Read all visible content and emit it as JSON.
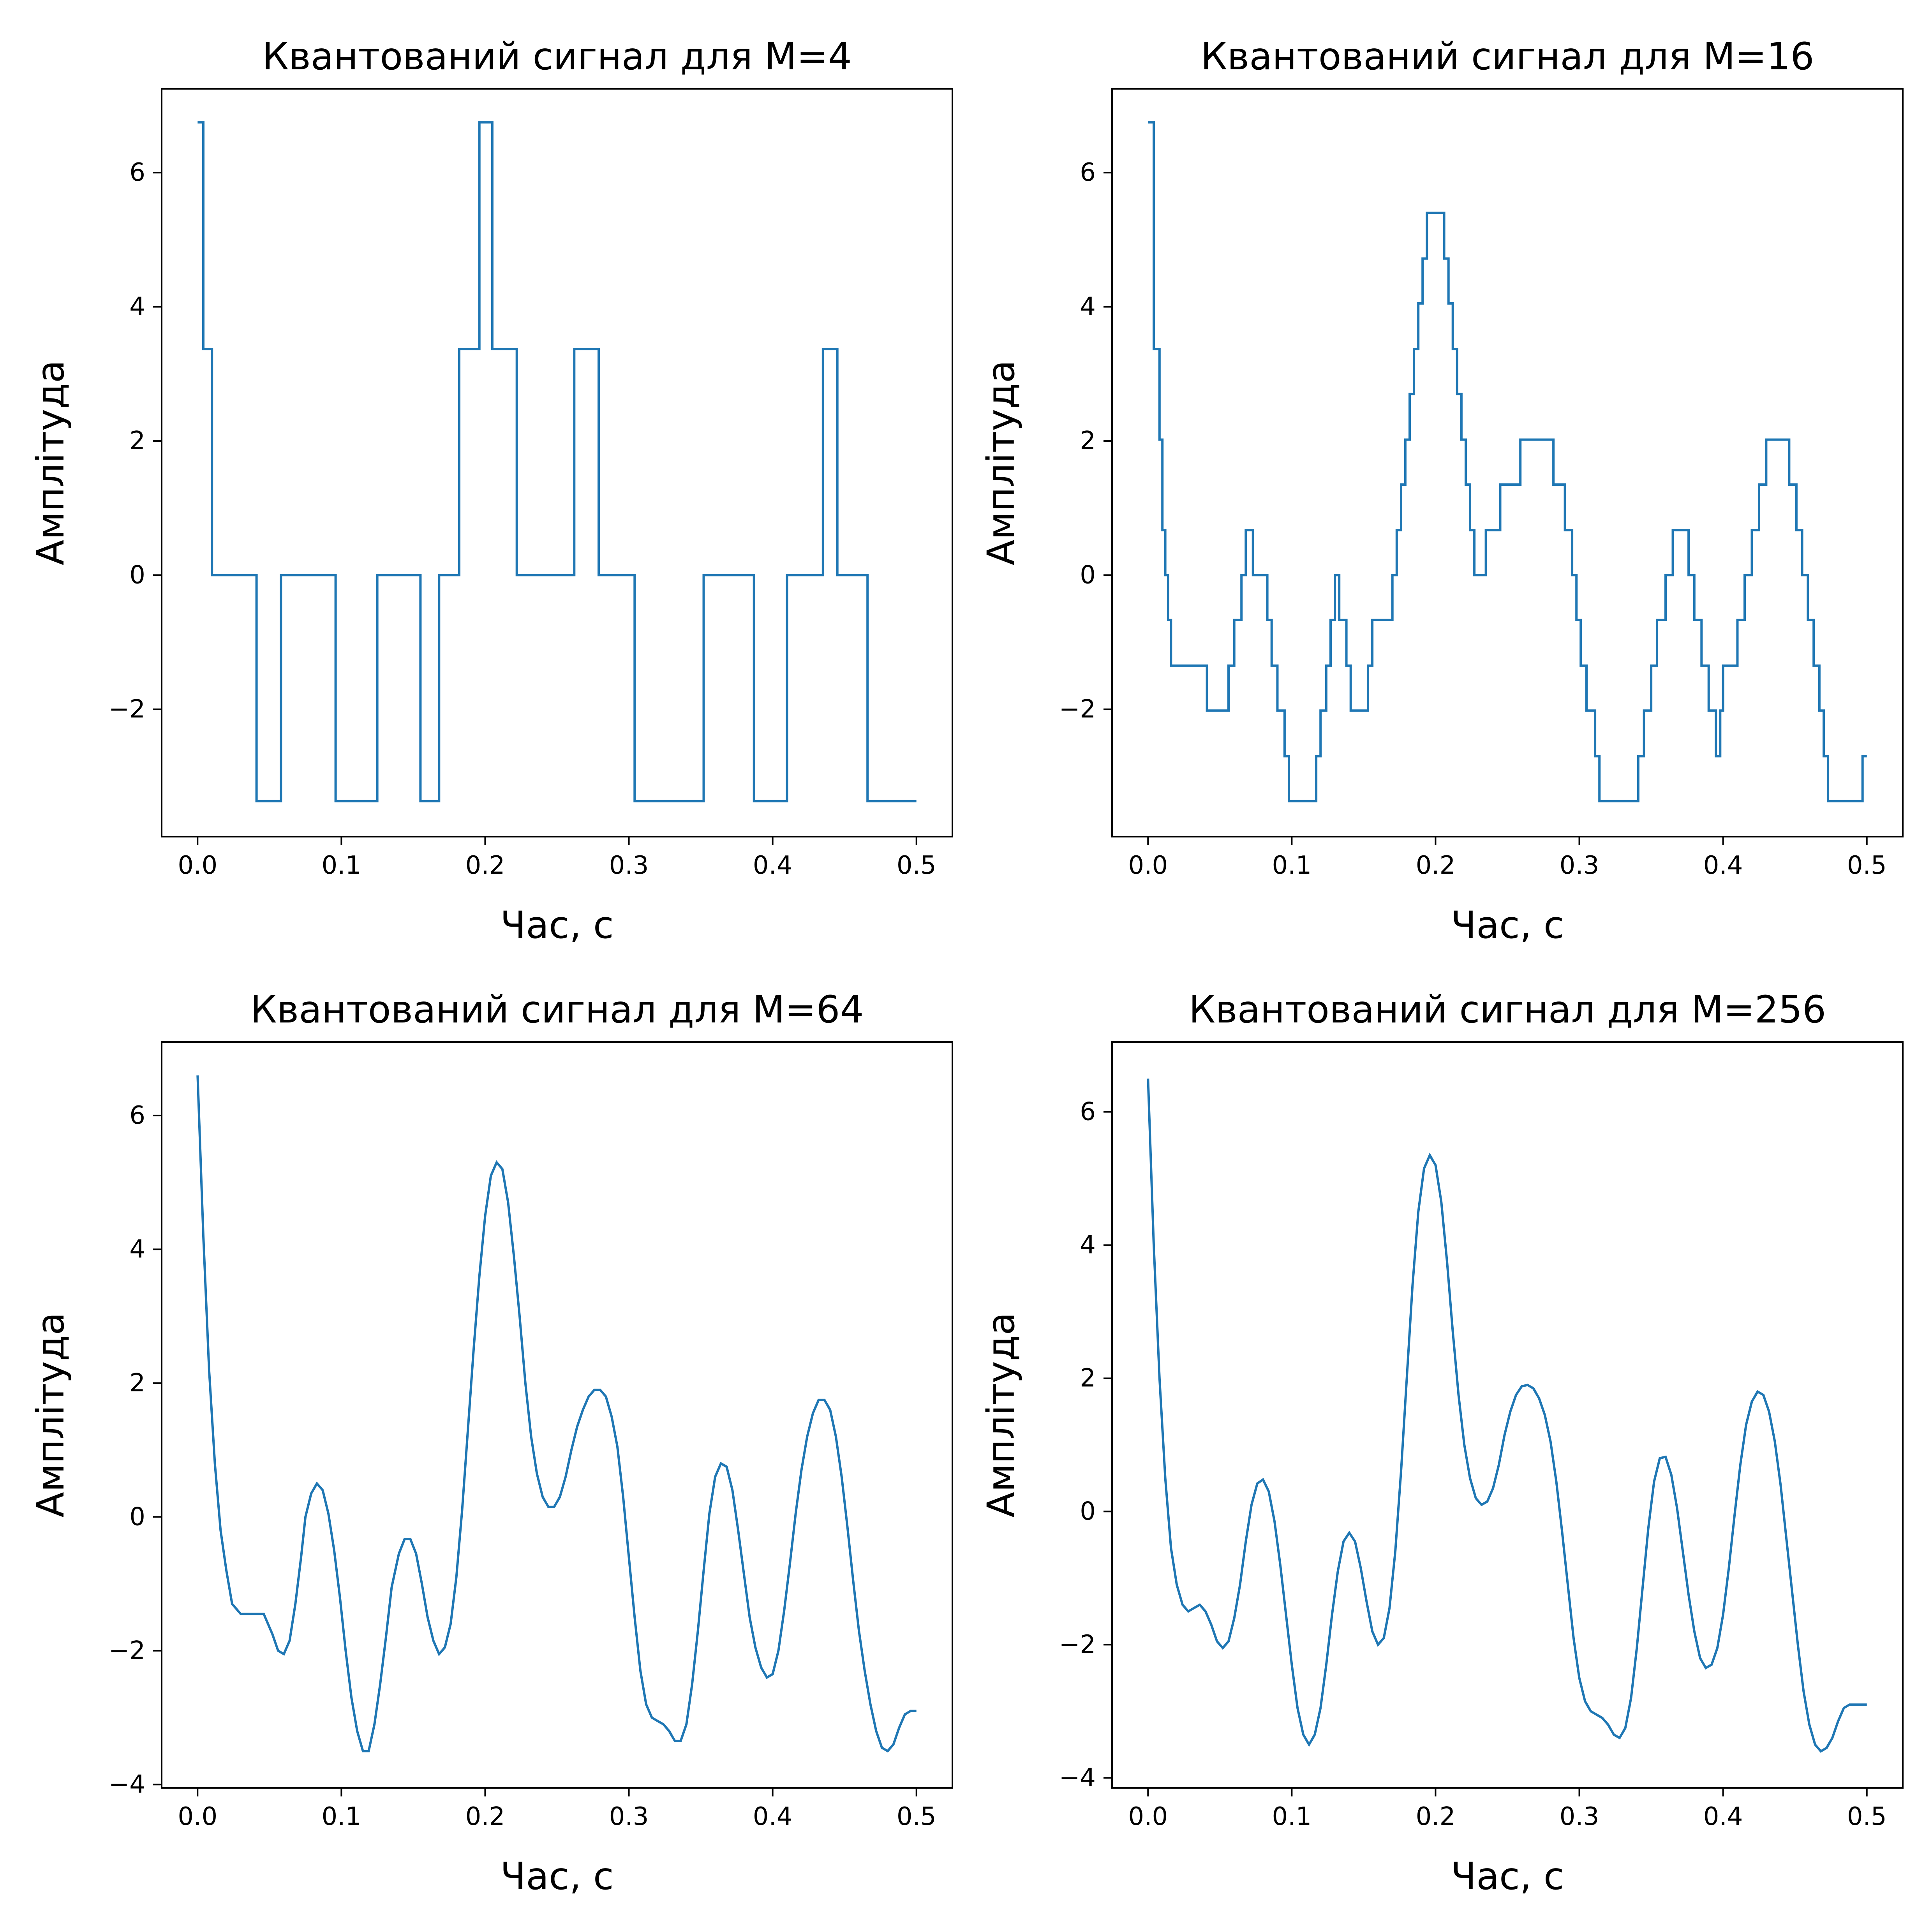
{
  "figure": {
    "background": "#ffffff",
    "line_color": "#1f77b4"
  },
  "chart_data": [
    {
      "type": "line",
      "step": "post",
      "title": "Квантований сигнал для M=4",
      "xlabel": "Час, с",
      "ylabel": "Амплітуда",
      "xlim": [
        -0.025,
        0.525
      ],
      "ylim": [
        -3.9,
        7.25
      ],
      "xticks": [
        0.0,
        0.1,
        0.2,
        0.3,
        0.4,
        0.5
      ],
      "xtick_labels": [
        "0.0",
        "0.1",
        "0.2",
        "0.3",
        "0.4",
        "0.5"
      ],
      "yticks": [
        -2,
        0,
        2,
        4,
        6
      ],
      "ytick_labels": [
        "−2",
        "0",
        "2",
        "4",
        "6"
      ],
      "grid": false,
      "legend": "none",
      "series": [
        {
          "x": [
            0.0,
            0.004,
            0.01,
            0.041,
            0.058,
            0.096,
            0.125,
            0.155,
            0.168,
            0.182,
            0.196,
            0.205,
            0.222,
            0.262,
            0.279,
            0.304,
            0.352,
            0.387,
            0.41,
            0.435,
            0.445,
            0.466,
            0.5
          ],
          "y": [
            6.75,
            3.37,
            0.0,
            -3.37,
            0.0,
            -3.37,
            0.0,
            -3.37,
            0.0,
            3.37,
            6.75,
            3.37,
            0.0,
            3.37,
            0.0,
            -3.37,
            0.0,
            -3.37,
            0.0,
            3.37,
            0.0,
            -3.37,
            -3.37
          ]
        }
      ]
    },
    {
      "type": "line",
      "step": "post",
      "title": "Квантований сигнал для M=16",
      "xlabel": "Час, с",
      "ylabel": "Амплітуда",
      "xlim": [
        -0.025,
        0.525
      ],
      "ylim": [
        -3.9,
        7.25
      ],
      "xticks": [
        0.0,
        0.1,
        0.2,
        0.3,
        0.4,
        0.5
      ],
      "xtick_labels": [
        "0.0",
        "0.1",
        "0.2",
        "0.3",
        "0.4",
        "0.5"
      ],
      "yticks": [
        -2,
        0,
        2,
        4,
        6
      ],
      "ytick_labels": [
        "−2",
        "0",
        "2",
        "4",
        "6"
      ],
      "grid": false,
      "legend": "none",
      "series": [
        {
          "x": [
            0.0,
            0.004,
            0.008,
            0.01,
            0.012,
            0.014,
            0.016,
            0.018,
            0.02,
            0.041,
            0.056,
            0.06,
            0.065,
            0.068,
            0.073,
            0.083,
            0.086,
            0.09,
            0.095,
            0.098,
            0.102,
            0.107,
            0.117,
            0.12,
            0.124,
            0.127,
            0.13,
            0.133,
            0.138,
            0.141,
            0.145,
            0.15,
            0.153,
            0.156,
            0.17,
            0.173,
            0.176,
            0.179,
            0.182,
            0.185,
            0.188,
            0.191,
            0.194,
            0.197,
            0.206,
            0.209,
            0.212,
            0.215,
            0.218,
            0.221,
            0.224,
            0.227,
            0.231,
            0.235,
            0.245,
            0.252,
            0.259,
            0.265,
            0.282,
            0.29,
            0.295,
            0.298,
            0.301,
            0.305,
            0.308,
            0.311,
            0.314,
            0.322,
            0.341,
            0.345,
            0.35,
            0.354,
            0.36,
            0.365,
            0.376,
            0.38,
            0.385,
            0.39,
            0.395,
            0.398,
            0.4,
            0.41,
            0.415,
            0.42,
            0.425,
            0.43,
            0.436,
            0.446,
            0.451,
            0.455,
            0.459,
            0.463,
            0.467,
            0.47,
            0.473,
            0.476,
            0.497,
            0.5
          ],
          "y": [
            6.75,
            3.37,
            2.02,
            0.67,
            0.0,
            -0.67,
            -1.35,
            -1.35,
            -1.35,
            -2.02,
            -1.35,
            -0.67,
            0.0,
            0.67,
            0.0,
            -0.67,
            -1.35,
            -2.02,
            -2.7,
            -3.37,
            -3.37,
            -3.37,
            -2.7,
            -2.02,
            -1.35,
            -0.67,
            0.0,
            -0.67,
            -1.35,
            -2.02,
            -2.02,
            -2.02,
            -1.35,
            -0.67,
            0.0,
            0.67,
            1.35,
            2.02,
            2.7,
            3.37,
            4.05,
            4.72,
            5.4,
            5.4,
            4.72,
            4.05,
            3.37,
            2.7,
            2.02,
            1.35,
            0.67,
            0.0,
            0.0,
            0.67,
            1.35,
            1.35,
            2.02,
            2.02,
            1.35,
            0.67,
            0.0,
            -0.67,
            -1.35,
            -2.02,
            -2.02,
            -2.7,
            -3.37,
            -3.37,
            -2.7,
            -2.02,
            -1.35,
            -0.67,
            0.0,
            0.67,
            0.0,
            -0.67,
            -1.35,
            -2.02,
            -2.7,
            -2.02,
            -1.35,
            -0.67,
            0.0,
            0.67,
            1.35,
            2.02,
            2.02,
            1.35,
            0.67,
            0.0,
            -0.67,
            -1.35,
            -2.02,
            -2.7,
            -3.37,
            -3.37,
            -2.7,
            -2.7
          ]
        }
      ]
    },
    {
      "type": "line",
      "title": "Квантований сигнал для M=64",
      "xlabel": "Час, с",
      "ylabel": "Амплітуда",
      "xlim": [
        -0.025,
        0.525
      ],
      "ylim": [
        -4.05,
        7.1
      ],
      "xticks": [
        0.0,
        0.1,
        0.2,
        0.3,
        0.4,
        0.5
      ],
      "xtick_labels": [
        "0.0",
        "0.1",
        "0.2",
        "0.3",
        "0.4",
        "0.5"
      ],
      "yticks": [
        -4,
        -2,
        0,
        2,
        4,
        6
      ],
      "ytick_labels": [
        "−4",
        "−2",
        "0",
        "2",
        "4",
        "6"
      ],
      "grid": false,
      "legend": "none",
      "series": [
        {
          "x": [
            0.0,
            0.004,
            0.008,
            0.012,
            0.016,
            0.02,
            0.024,
            0.03,
            0.038,
            0.046,
            0.052,
            0.056,
            0.06,
            0.064,
            0.068,
            0.072,
            0.075,
            0.079,
            0.083,
            0.087,
            0.091,
            0.095,
            0.099,
            0.103,
            0.107,
            0.111,
            0.115,
            0.119,
            0.123,
            0.127,
            0.131,
            0.135,
            0.14,
            0.144,
            0.148,
            0.152,
            0.156,
            0.16,
            0.164,
            0.168,
            0.172,
            0.176,
            0.18,
            0.184,
            0.188,
            0.192,
            0.196,
            0.2,
            0.204,
            0.208,
            0.212,
            0.216,
            0.22,
            0.224,
            0.228,
            0.232,
            0.236,
            0.24,
            0.244,
            0.248,
            0.252,
            0.256,
            0.26,
            0.264,
            0.268,
            0.272,
            0.276,
            0.28,
            0.284,
            0.288,
            0.292,
            0.296,
            0.3,
            0.304,
            0.308,
            0.312,
            0.316,
            0.32,
            0.324,
            0.328,
            0.332,
            0.336,
            0.34,
            0.344,
            0.348,
            0.352,
            0.356,
            0.36,
            0.364,
            0.368,
            0.372,
            0.376,
            0.38,
            0.384,
            0.388,
            0.392,
            0.396,
            0.4,
            0.404,
            0.408,
            0.412,
            0.416,
            0.42,
            0.424,
            0.428,
            0.432,
            0.436,
            0.44,
            0.444,
            0.448,
            0.452,
            0.456,
            0.46,
            0.464,
            0.468,
            0.472,
            0.476,
            0.48,
            0.484,
            0.488,
            0.492,
            0.496,
            0.5
          ],
          "y": [
            6.6,
            4.2,
            2.2,
            0.8,
            -0.2,
            -0.8,
            -1.3,
            -1.45,
            -1.45,
            -1.45,
            -1.75,
            -2.0,
            -2.05,
            -1.85,
            -1.3,
            -0.6,
            0.0,
            0.35,
            0.5,
            0.4,
            0.05,
            -0.5,
            -1.2,
            -2.0,
            -2.7,
            -3.2,
            -3.5,
            -3.5,
            -3.1,
            -2.5,
            -1.8,
            -1.05,
            -0.55,
            -0.33,
            -0.33,
            -0.55,
            -1.0,
            -1.5,
            -1.85,
            -2.05,
            -1.95,
            -1.6,
            -0.9,
            0.1,
            1.3,
            2.5,
            3.6,
            4.5,
            5.1,
            5.3,
            5.2,
            4.7,
            3.9,
            3.0,
            2.0,
            1.2,
            0.65,
            0.3,
            0.15,
            0.15,
            0.3,
            0.6,
            1.0,
            1.35,
            1.6,
            1.8,
            1.9,
            1.9,
            1.8,
            1.5,
            1.05,
            0.3,
            -0.6,
            -1.5,
            -2.3,
            -2.8,
            -3.0,
            -3.05,
            -3.1,
            -3.2,
            -3.35,
            -3.35,
            -3.1,
            -2.5,
            -1.7,
            -0.8,
            0.05,
            0.6,
            0.8,
            0.75,
            0.4,
            -0.2,
            -0.85,
            -1.5,
            -1.95,
            -2.25,
            -2.4,
            -2.35,
            -2.0,
            -1.4,
            -0.7,
            0.05,
            0.7,
            1.2,
            1.55,
            1.75,
            1.75,
            1.6,
            1.2,
            0.6,
            -0.15,
            -0.95,
            -1.7,
            -2.3,
            -2.8,
            -3.2,
            -3.45,
            -3.5,
            -3.4,
            -3.15,
            -2.95,
            -2.9,
            -2.9
          ]
        }
      ]
    },
    {
      "type": "line",
      "title": "Квантований сигнал для M=256",
      "xlabel": "Час, с",
      "ylabel": "Амплітуда",
      "xlim": [
        -0.025,
        0.525
      ],
      "ylim": [
        -4.15,
        7.05
      ],
      "xticks": [
        0.0,
        0.1,
        0.2,
        0.3,
        0.4,
        0.5
      ],
      "xtick_labels": [
        "0.0",
        "0.1",
        "0.2",
        "0.3",
        "0.4",
        "0.5"
      ],
      "yticks": [
        -4,
        -2,
        0,
        2,
        4,
        6
      ],
      "ytick_labels": [
        "−4",
        "−2",
        "0",
        "2",
        "4",
        "6"
      ],
      "grid": false,
      "legend": "none",
      "series": [
        {
          "x": [
            0.0,
            0.004,
            0.008,
            0.012,
            0.016,
            0.02,
            0.024,
            0.028,
            0.032,
            0.036,
            0.04,
            0.044,
            0.048,
            0.052,
            0.056,
            0.06,
            0.064,
            0.068,
            0.072,
            0.076,
            0.08,
            0.084,
            0.088,
            0.092,
            0.096,
            0.1,
            0.104,
            0.108,
            0.112,
            0.116,
            0.12,
            0.124,
            0.128,
            0.132,
            0.136,
            0.14,
            0.144,
            0.148,
            0.152,
            0.156,
            0.16,
            0.164,
            0.168,
            0.172,
            0.176,
            0.18,
            0.184,
            0.188,
            0.192,
            0.196,
            0.2,
            0.204,
            0.208,
            0.212,
            0.216,
            0.22,
            0.224,
            0.228,
            0.232,
            0.236,
            0.24,
            0.244,
            0.248,
            0.252,
            0.256,
            0.26,
            0.264,
            0.268,
            0.272,
            0.276,
            0.28,
            0.284,
            0.288,
            0.292,
            0.296,
            0.3,
            0.304,
            0.308,
            0.312,
            0.316,
            0.32,
            0.324,
            0.328,
            0.332,
            0.336,
            0.34,
            0.344,
            0.348,
            0.352,
            0.356,
            0.36,
            0.364,
            0.368,
            0.372,
            0.376,
            0.38,
            0.384,
            0.388,
            0.392,
            0.396,
            0.4,
            0.404,
            0.408,
            0.412,
            0.416,
            0.42,
            0.424,
            0.428,
            0.432,
            0.436,
            0.44,
            0.444,
            0.448,
            0.452,
            0.456,
            0.46,
            0.464,
            0.468,
            0.472,
            0.476,
            0.48,
            0.484,
            0.488,
            0.492,
            0.496,
            0.5
          ],
          "y": [
            6.5,
            4.0,
            2.0,
            0.5,
            -0.55,
            -1.1,
            -1.4,
            -1.5,
            -1.45,
            -1.4,
            -1.5,
            -1.7,
            -1.95,
            -2.05,
            -1.95,
            -1.6,
            -1.1,
            -0.45,
            0.1,
            0.42,
            0.48,
            0.3,
            -0.15,
            -0.8,
            -1.55,
            -2.3,
            -2.95,
            -3.35,
            -3.5,
            -3.35,
            -2.95,
            -2.3,
            -1.55,
            -0.9,
            -0.45,
            -0.32,
            -0.45,
            -0.85,
            -1.35,
            -1.8,
            -2.0,
            -1.9,
            -1.45,
            -0.6,
            0.6,
            2.0,
            3.4,
            4.5,
            5.15,
            5.35,
            5.2,
            4.65,
            3.75,
            2.7,
            1.75,
            1.0,
            0.5,
            0.2,
            0.1,
            0.15,
            0.35,
            0.7,
            1.15,
            1.5,
            1.75,
            1.88,
            1.9,
            1.85,
            1.7,
            1.45,
            1.05,
            0.45,
            -0.3,
            -1.1,
            -1.9,
            -2.5,
            -2.85,
            -3.0,
            -3.05,
            -3.1,
            -3.2,
            -3.35,
            -3.4,
            -3.25,
            -2.8,
            -2.05,
            -1.15,
            -0.25,
            0.45,
            0.8,
            0.82,
            0.55,
            0.05,
            -0.6,
            -1.25,
            -1.8,
            -2.2,
            -2.35,
            -2.3,
            -2.05,
            -1.55,
            -0.85,
            -0.05,
            0.7,
            1.3,
            1.65,
            1.8,
            1.75,
            1.5,
            1.05,
            0.4,
            -0.4,
            -1.2,
            -2.0,
            -2.7,
            -3.2,
            -3.5,
            -3.6,
            -3.55,
            -3.4,
            -3.15,
            -2.95,
            -2.9,
            -2.9,
            -2.9,
            -2.9
          ]
        }
      ]
    }
  ]
}
